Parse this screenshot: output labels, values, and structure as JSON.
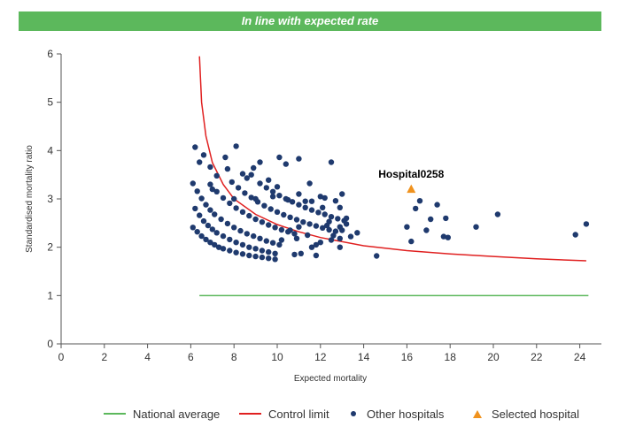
{
  "banner": "In line with expected rate",
  "chart_data": {
    "type": "scatter",
    "xlabel": "Expected mortality",
    "ylabel": "Standardised mortality ratio",
    "xlim": [
      0,
      25
    ],
    "ylim": [
      0,
      6
    ],
    "xticks": [
      0,
      2,
      4,
      6,
      8,
      10,
      12,
      14,
      16,
      18,
      20,
      22,
      24
    ],
    "yticks": [
      0,
      1,
      2,
      3,
      4,
      5,
      6
    ],
    "grid": false,
    "national_average": {
      "name": "National average",
      "color": "#5cb85c",
      "x": [
        6.4,
        24.4
      ],
      "y": [
        1,
        1
      ]
    },
    "control_limit": {
      "name": "Control limit",
      "color": "#e02020",
      "points": [
        [
          6.4,
          5.95
        ],
        [
          6.5,
          5.0
        ],
        [
          6.7,
          4.3
        ],
        [
          7.0,
          3.75
        ],
        [
          7.5,
          3.3
        ],
        [
          8.0,
          3.0
        ],
        [
          9.0,
          2.68
        ],
        [
          10.0,
          2.47
        ],
        [
          11.0,
          2.32
        ],
        [
          12.0,
          2.2
        ],
        [
          14.0,
          2.03
        ],
        [
          16.0,
          1.93
        ],
        [
          18.0,
          1.86
        ],
        [
          20.0,
          1.81
        ],
        [
          22.0,
          1.76
        ],
        [
          24.3,
          1.72
        ]
      ]
    },
    "other_hospitals": {
      "name": "Other hospitals",
      "color": "#1f3a6e",
      "points": [
        [
          6.1,
          2.41
        ],
        [
          6.3,
          2.32
        ],
        [
          6.5,
          2.23
        ],
        [
          6.7,
          2.16
        ],
        [
          6.9,
          2.1
        ],
        [
          7.1,
          2.05
        ],
        [
          7.3,
          2.0
        ],
        [
          7.5,
          1.97
        ],
        [
          7.8,
          1.93
        ],
        [
          8.1,
          1.89
        ],
        [
          8.4,
          1.86
        ],
        [
          8.7,
          1.83
        ],
        [
          9.0,
          1.81
        ],
        [
          9.3,
          1.79
        ],
        [
          9.6,
          1.77
        ],
        [
          9.9,
          1.75
        ],
        [
          6.2,
          2.8
        ],
        [
          6.4,
          2.66
        ],
        [
          6.6,
          2.54
        ],
        [
          6.8,
          2.45
        ],
        [
          7.0,
          2.37
        ],
        [
          7.2,
          2.3
        ],
        [
          7.5,
          2.23
        ],
        [
          7.8,
          2.16
        ],
        [
          8.1,
          2.1
        ],
        [
          8.4,
          2.05
        ],
        [
          8.7,
          2.0
        ],
        [
          9.0,
          1.97
        ],
        [
          9.3,
          1.93
        ],
        [
          9.6,
          1.9
        ],
        [
          9.9,
          1.87
        ],
        [
          6.1,
          3.32
        ],
        [
          6.3,
          3.16
        ],
        [
          6.5,
          3.01
        ],
        [
          6.7,
          2.88
        ],
        [
          6.9,
          2.77
        ],
        [
          7.1,
          2.68
        ],
        [
          7.4,
          2.58
        ],
        [
          7.7,
          2.49
        ],
        [
          8.0,
          2.41
        ],
        [
          8.3,
          2.34
        ],
        [
          8.6,
          2.28
        ],
        [
          8.9,
          2.23
        ],
        [
          9.2,
          2.18
        ],
        [
          9.5,
          2.13
        ],
        [
          9.8,
          2.09
        ],
        [
          10.1,
          2.05
        ],
        [
          6.9,
          3.3
        ],
        [
          7.2,
          3.15
        ],
        [
          7.5,
          3.02
        ],
        [
          7.8,
          2.91
        ],
        [
          8.1,
          2.81
        ],
        [
          8.4,
          2.73
        ],
        [
          8.7,
          2.65
        ],
        [
          9.0,
          2.58
        ],
        [
          9.3,
          2.52
        ],
        [
          9.6,
          2.46
        ],
        [
          9.9,
          2.41
        ],
        [
          10.2,
          2.36
        ],
        [
          10.5,
          2.32
        ],
        [
          10.8,
          2.28
        ],
        [
          7.9,
          3.35
        ],
        [
          8.2,
          3.23
        ],
        [
          8.5,
          3.12
        ],
        [
          8.8,
          3.03
        ],
        [
          9.1,
          2.94
        ],
        [
          9.4,
          2.86
        ],
        [
          9.7,
          2.79
        ],
        [
          10.0,
          2.73
        ],
        [
          10.3,
          2.67
        ],
        [
          10.6,
          2.62
        ],
        [
          10.9,
          2.57
        ],
        [
          11.2,
          2.52
        ],
        [
          11.5,
          2.48
        ],
        [
          11.8,
          2.44
        ],
        [
          12.1,
          2.4
        ],
        [
          12.4,
          2.36
        ],
        [
          12.7,
          2.33
        ],
        [
          9.2,
          3.32
        ],
        [
          9.5,
          3.23
        ],
        [
          9.8,
          3.15
        ],
        [
          10.1,
          3.07
        ],
        [
          10.4,
          3.0
        ],
        [
          10.7,
          2.94
        ],
        [
          11.0,
          2.88
        ],
        [
          11.3,
          2.82
        ],
        [
          11.6,
          2.77
        ],
        [
          11.9,
          2.72
        ],
        [
          12.2,
          2.68
        ],
        [
          12.5,
          2.63
        ],
        [
          12.8,
          2.59
        ],
        [
          13.1,
          2.55
        ],
        [
          6.2,
          4.07
        ],
        [
          6.6,
          3.91
        ],
        [
          6.4,
          3.76
        ],
        [
          6.9,
          3.66
        ],
        [
          7.2,
          3.48
        ],
        [
          7.6,
          3.86
        ],
        [
          8.1,
          4.09
        ],
        [
          8.4,
          3.52
        ],
        [
          8.6,
          3.43
        ],
        [
          8.9,
          3.64
        ],
        [
          9.2,
          3.76
        ],
        [
          9.6,
          3.39
        ],
        [
          10.1,
          3.86
        ],
        [
          10.4,
          3.72
        ],
        [
          11.0,
          3.83
        ],
        [
          11.3,
          2.95
        ],
        [
          11.5,
          3.32
        ],
        [
          12.0,
          3.05
        ],
        [
          12.5,
          3.76
        ],
        [
          12.7,
          2.96
        ],
        [
          13.0,
          3.1
        ],
        [
          7.0,
          3.2
        ],
        [
          7.7,
          3.62
        ],
        [
          8.0,
          3.0
        ],
        [
          8.8,
          3.5
        ],
        [
          9.0,
          3.0
        ],
        [
          9.8,
          3.05
        ],
        [
          10.0,
          3.25
        ],
        [
          10.5,
          2.98
        ],
        [
          11.0,
          3.1
        ],
        [
          11.6,
          2.95
        ],
        [
          12.2,
          3.02
        ],
        [
          12.4,
          2.53
        ],
        [
          12.9,
          2.42
        ],
        [
          13.2,
          2.6
        ],
        [
          13.7,
          2.3
        ],
        [
          10.2,
          2.15
        ],
        [
          10.6,
          2.35
        ],
        [
          11.0,
          2.42
        ],
        [
          11.4,
          2.25
        ],
        [
          11.8,
          2.05
        ],
        [
          12.0,
          2.1
        ],
        [
          12.3,
          2.45
        ],
        [
          12.6,
          2.24
        ],
        [
          12.9,
          2.18
        ],
        [
          13.4,
          2.22
        ],
        [
          12.1,
          2.82
        ],
        [
          12.9,
          2.82
        ],
        [
          13.2,
          2.48
        ],
        [
          11.8,
          1.83
        ],
        [
          11.1,
          1.87
        ],
        [
          10.8,
          1.85
        ],
        [
          12.9,
          2.0
        ],
        [
          12.5,
          2.15
        ],
        [
          10.9,
          2.18
        ],
        [
          11.6,
          2.0
        ],
        [
          13.0,
          2.35
        ],
        [
          14.6,
          1.82
        ],
        [
          16.0,
          2.42
        ],
        [
          16.2,
          2.12
        ],
        [
          16.4,
          2.8
        ],
        [
          16.6,
          2.96
        ],
        [
          16.9,
          2.35
        ],
        [
          17.1,
          2.58
        ],
        [
          17.4,
          2.88
        ],
        [
          17.7,
          2.22
        ],
        [
          17.8,
          2.6
        ],
        [
          17.9,
          2.2
        ],
        [
          19.2,
          2.42
        ],
        [
          20.2,
          2.68
        ],
        [
          23.8,
          2.26
        ],
        [
          24.3,
          2.48
        ]
      ]
    },
    "selected_hospital": {
      "name": "Selected hospital",
      "label": "Hospital0258",
      "color": "#f0921e",
      "x": 16.2,
      "y": 3.2
    }
  },
  "legend": {
    "national_average": "National average",
    "control_limit": "Control limit",
    "other_hospitals": "Other hospitals",
    "selected_hospital": "Selected hospital"
  }
}
